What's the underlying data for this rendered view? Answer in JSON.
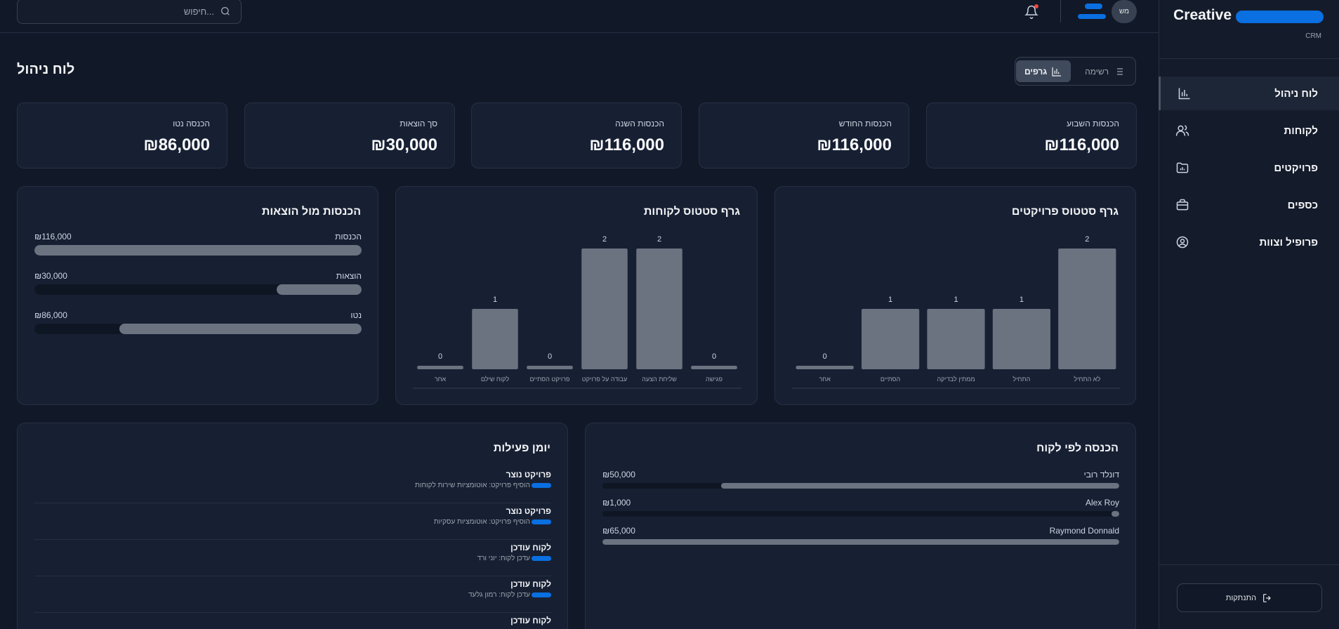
{
  "brand": {
    "name": "Creative",
    "sub": "CRM"
  },
  "search": {
    "placeholder": "חיפוש..."
  },
  "user": {
    "initials": "מש"
  },
  "page": {
    "title": "לוח ניהול"
  },
  "view_toggle": {
    "list_label": "רשימה",
    "charts_label": "גרפים"
  },
  "sidebar": {
    "items": [
      {
        "label": "לוח ניהול",
        "icon": "bar-chart-icon",
        "active": true
      },
      {
        "label": "לקוחות",
        "icon": "users-icon"
      },
      {
        "label": "פרויקטים",
        "icon": "folder-chart-icon"
      },
      {
        "label": "כספים",
        "icon": "briefcase-icon"
      },
      {
        "label": "פרופיל וצוות",
        "icon": "user-circle-icon"
      }
    ],
    "logout_label": "התנתקות"
  },
  "stats": [
    {
      "label": "הכנסות השבוע",
      "value": "₪116,000"
    },
    {
      "label": "הכנסות החודש",
      "value": "₪116,000"
    },
    {
      "label": "הכנסות השנה",
      "value": "₪116,000"
    },
    {
      "label": "סך הוצאות",
      "value": "₪30,000"
    },
    {
      "label": "הכנסה נטו",
      "value": "₪86,000"
    }
  ],
  "project_status": {
    "title": "גרף סטטוס פרויקטים"
  },
  "client_status": {
    "title": "גרף סטטוס לקוחות"
  },
  "income_expenses": {
    "title": "הכנסות מול הוצאות",
    "rows": [
      {
        "label": "הכנסות",
        "value": "₪116,000",
        "fraction": 1.0
      },
      {
        "label": "הוצאות",
        "value": "₪30,000",
        "fraction": 0.26
      },
      {
        "label": "נטו",
        "value": "₪86,000",
        "fraction": 0.74
      }
    ]
  },
  "activity_log": {
    "title": "יומן פעילות",
    "items": [
      {
        "title": "פרויקט נוצר",
        "desc": "הוסיף פרויקט: אוטומציות שירות לקוחות"
      },
      {
        "title": "פרויקט נוצר",
        "desc": "הוסיף פרויקט: אוטומציות עסקיות"
      },
      {
        "title": "לקוח עודכן",
        "desc": "עדכן לקוח: יוני ורד"
      },
      {
        "title": "לקוח עודכן",
        "desc": "עדכן לקוח: רמון גלעד"
      },
      {
        "title": "לקוח עודכן",
        "desc": ""
      }
    ]
  },
  "revenue_by_client": {
    "title": "הכנסה לפי לקוח",
    "rows": [
      {
        "label": "דונלד רובי",
        "value": "₪50,000",
        "fraction": 0.77
      },
      {
        "label": "Alex Roy",
        "value": "₪1,000",
        "fraction": 0.015
      },
      {
        "label": "Raymond Donnald",
        "value": "₪65,000",
        "fraction": 1.0
      }
    ]
  },
  "chart_data": [
    {
      "type": "bar",
      "title": "גרף סטטוס פרויקטים",
      "categories": [
        "לא התחיל",
        "התחיל",
        "ממתין לבדיקה",
        "הסתיים",
        "אחר"
      ],
      "values": [
        2,
        1,
        1,
        1,
        0
      ],
      "ylim": [
        0,
        2
      ],
      "grid": false
    },
    {
      "type": "bar",
      "title": "גרף סטטוס לקוחות",
      "categories": [
        "פגישה",
        "שליחת הצעה",
        "עבודה על פרויקט",
        "פרויקט הסתיים",
        "לקוח שילם",
        "אחר"
      ],
      "values": [
        0,
        2,
        2,
        0,
        1,
        0
      ],
      "ylim": [
        0,
        2
      ],
      "grid": false
    }
  ],
  "colors": {
    "bg": "#111827",
    "card": "#172033",
    "bar": "#6b7280",
    "track": "#0f1623",
    "redact": "#0a6fe0",
    "notify": "#ef4444"
  }
}
